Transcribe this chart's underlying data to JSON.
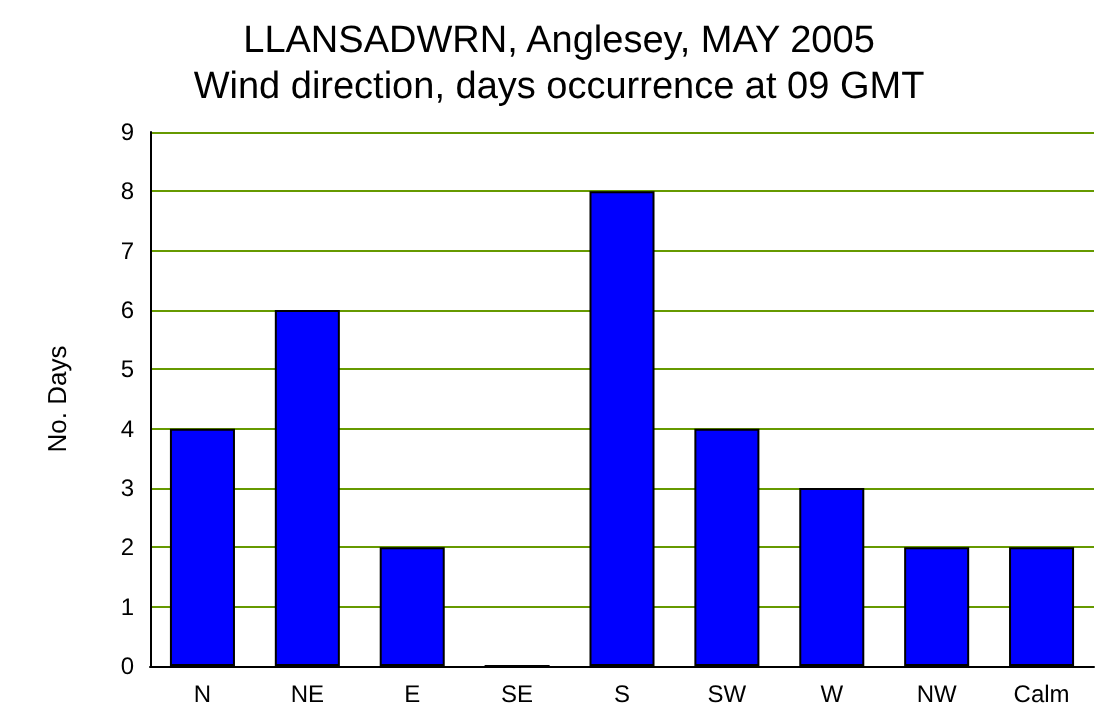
{
  "chart_data": {
    "type": "bar",
    "title": "LLANSADWRN, Anglesey, MAY 2005",
    "subtitle": "Wind direction, days occurrence at 09 GMT",
    "ylabel": "No. Days",
    "categories": [
      "N",
      "NE",
      "E",
      "SE",
      "S",
      "SW",
      "W",
      "NW",
      "Calm"
    ],
    "values": [
      4,
      6,
      2,
      0,
      8,
      4,
      3,
      2,
      2
    ],
    "color": "#0000ff",
    "ylim": [
      0,
      9
    ],
    "yticks": [
      0,
      1,
      2,
      3,
      4,
      5,
      6,
      7,
      8,
      9
    ],
    "grid": "y"
  }
}
